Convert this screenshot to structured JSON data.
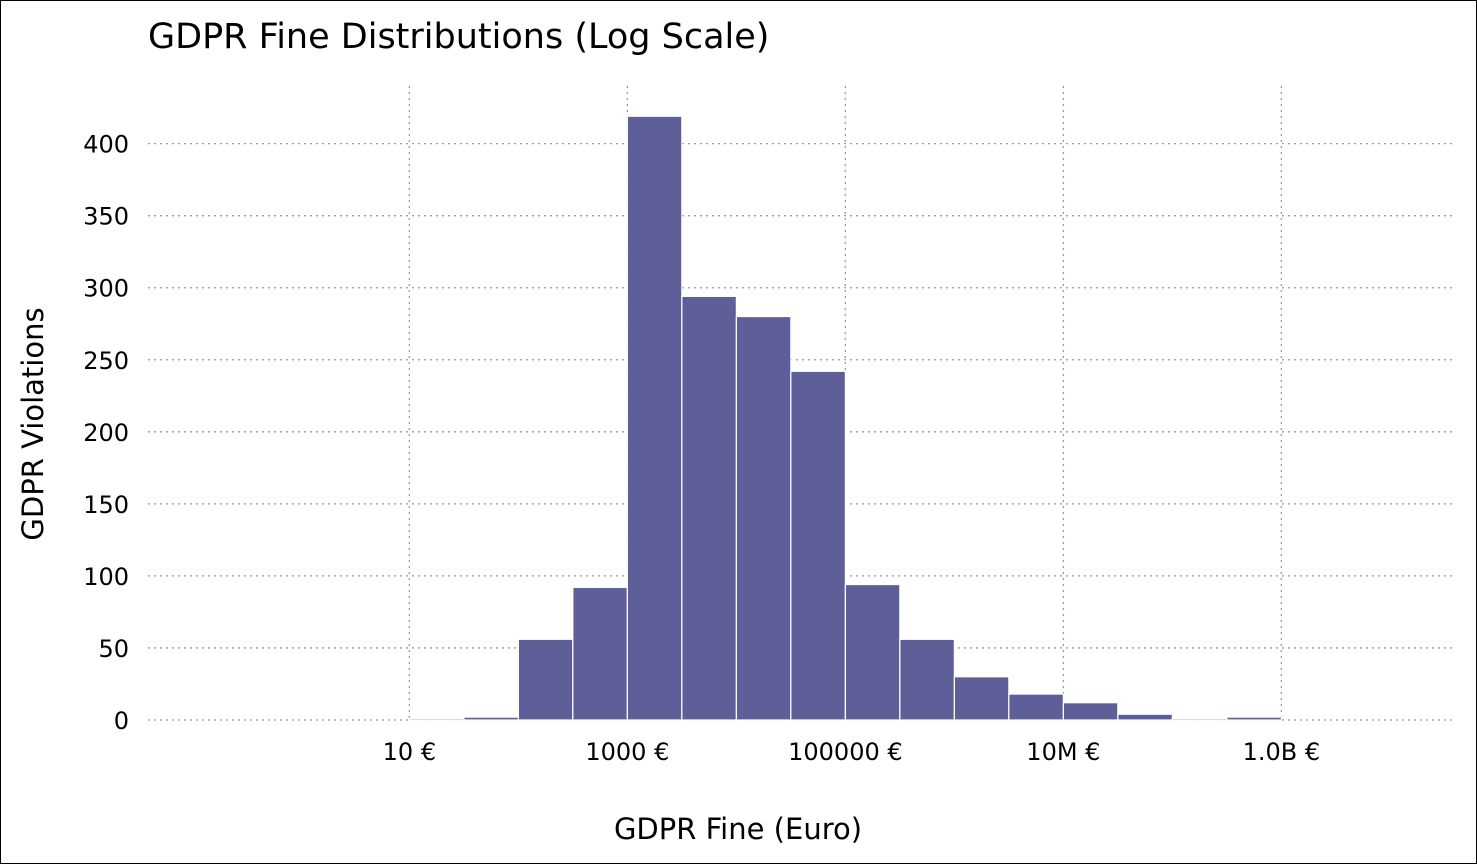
{
  "chart_data": {
    "type": "bar",
    "title": "GDPR Fine Distributions (Log Scale)",
    "xlabel": "GDPR Fine (Euro)",
    "ylabel": "GDPR Violations",
    "x_scale": "log",
    "xlim": [
      0.04,
      40000000000
    ],
    "ylim": [
      0,
      440
    ],
    "grid": true,
    "x_ticks": [
      {
        "value": 10,
        "label": "10 €"
      },
      {
        "value": 1000,
        "label": "1000 €"
      },
      {
        "value": 100000,
        "label": "100000 €"
      },
      {
        "value": 10000000,
        "label": "10M €"
      },
      {
        "value": 1000000000,
        "label": "1.0B €"
      }
    ],
    "y_ticks": [
      0,
      50,
      100,
      150,
      200,
      250,
      300,
      350,
      400
    ],
    "bar_color": "#5e5e99",
    "bins": [
      {
        "x0": 10,
        "x1": 31.6,
        "count": 1
      },
      {
        "x0": 31.6,
        "x1": 100,
        "count": 2
      },
      {
        "x0": 100,
        "x1": 316,
        "count": 56
      },
      {
        "x0": 316,
        "x1": 1000,
        "count": 92
      },
      {
        "x0": 1000,
        "x1": 3160,
        "count": 419
      },
      {
        "x0": 3160,
        "x1": 10000,
        "count": 294
      },
      {
        "x0": 10000,
        "x1": 31600,
        "count": 280
      },
      {
        "x0": 31600,
        "x1": 100000,
        "count": 242
      },
      {
        "x0": 100000,
        "x1": 316000,
        "count": 94
      },
      {
        "x0": 316000,
        "x1": 1000000,
        "count": 56
      },
      {
        "x0": 1000000,
        "x1": 3160000,
        "count": 30
      },
      {
        "x0": 3160000,
        "x1": 10000000,
        "count": 18
      },
      {
        "x0": 10000000,
        "x1": 31600000,
        "count": 12
      },
      {
        "x0": 31600000,
        "x1": 100000000,
        "count": 4
      },
      {
        "x0": 100000000,
        "x1": 316000000,
        "count": 1
      },
      {
        "x0": 316000000,
        "x1": 1000000000,
        "count": 2
      }
    ]
  }
}
